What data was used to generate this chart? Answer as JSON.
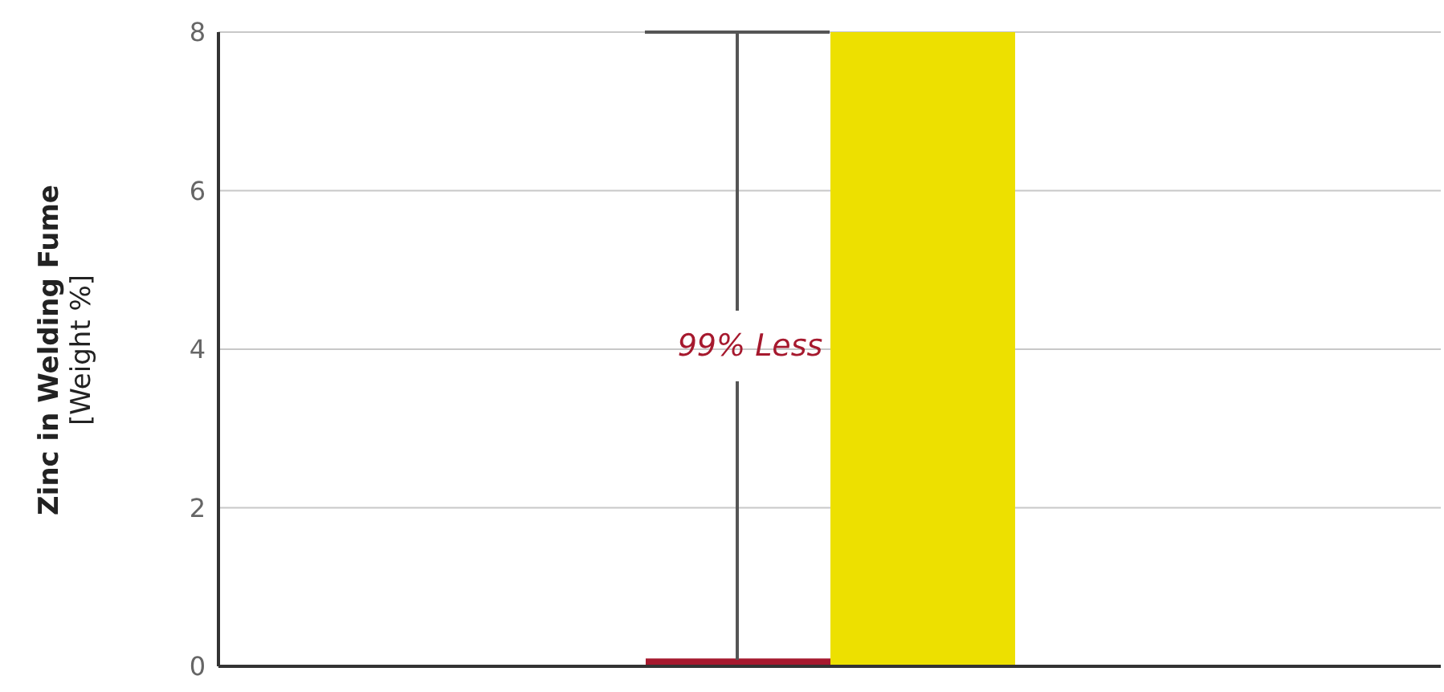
{
  "chart_data": {
    "type": "bar",
    "ylabel": "Zinc in Welding Fume\n[Weight %]",
    "categories": [
      null
    ],
    "series": [
      {
        "color": "#a6192e",
        "values": [
          0.1
        ]
      },
      {
        "color": "#ede000",
        "values": [
          8
        ]
      }
    ],
    "ylim": [
      0,
      8
    ],
    "yticks": [
      0,
      2,
      4,
      6,
      8
    ],
    "grid": "y",
    "annotations": [
      "99% Less"
    ]
  }
}
